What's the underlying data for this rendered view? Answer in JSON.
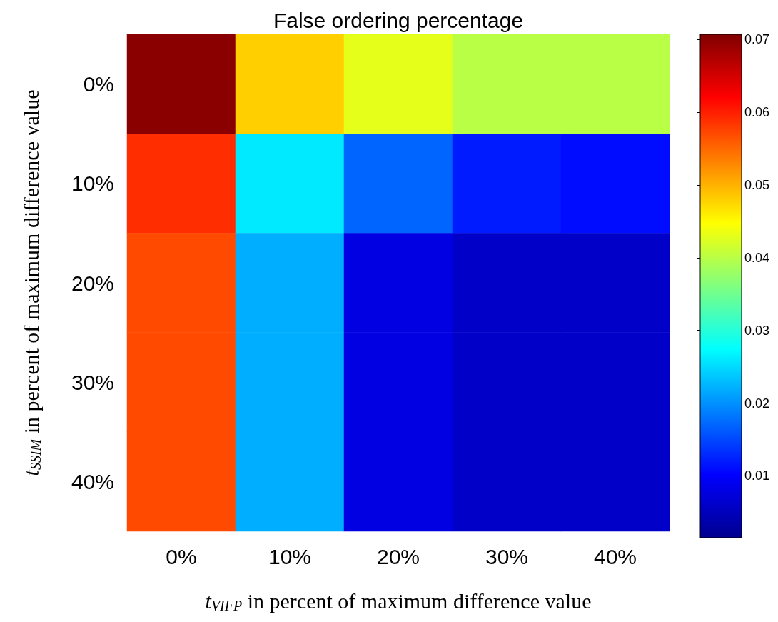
{
  "chart_data": {
    "type": "heatmap",
    "title": "False ordering percentage",
    "xlabel": "t$_{VIFP}$ in percent of maximum difference value",
    "ylabel": "t$_{SSIM}$ in percent of maximum difference value",
    "categories": [
      "0%",
      "10%",
      "20%",
      "30%",
      "40%"
    ],
    "y_categories": [
      "0%",
      "10%",
      "20%",
      "30%",
      "40%"
    ],
    "cells": [
      [
        0.07,
        0.048,
        0.043,
        0.04,
        0.04
      ],
      [
        0.059,
        0.026,
        0.017,
        0.012,
        0.011
      ],
      [
        0.057,
        0.022,
        0.008,
        0.006,
        0.006
      ],
      [
        0.057,
        0.022,
        0.008,
        0.006,
        0.006
      ],
      [
        0.057,
        0.022,
        0.008,
        0.006,
        0.006
      ]
    ],
    "clim": [
      0.0015,
      0.0707
    ],
    "cticks": [
      0.01,
      0.02,
      0.03,
      0.04,
      0.05,
      0.06,
      0.07
    ]
  }
}
